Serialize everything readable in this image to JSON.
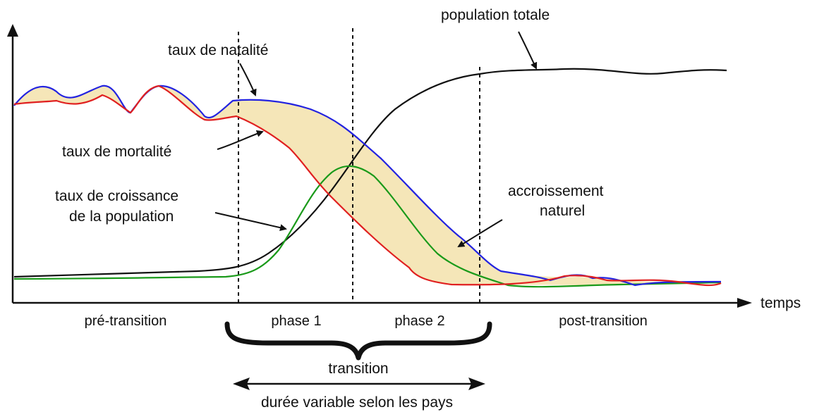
{
  "colors": {
    "birth_rate": "#2323e0",
    "death_rate": "#e02020",
    "growth_rate": "#1a9a1a",
    "population": "#111111",
    "natural_increase": "#f5e6b8",
    "axis": "#111111"
  },
  "labels": {
    "population_totale": "population totale",
    "natalite": "taux de natalité",
    "mortalite": "taux de mortalité",
    "croissance_line1": "taux de croissance",
    "croissance_line2": "de la population",
    "accroissement_line1": "accroissement",
    "accroissement_line2": "naturel",
    "temps": "temps"
  },
  "phases": [
    {
      "label": "pré-transition"
    },
    {
      "label": "phase 1"
    },
    {
      "label": "phase 2"
    },
    {
      "label": "post-transition"
    }
  ],
  "transition": {
    "label": "transition",
    "duration_label": "durée variable selon les pays"
  }
}
